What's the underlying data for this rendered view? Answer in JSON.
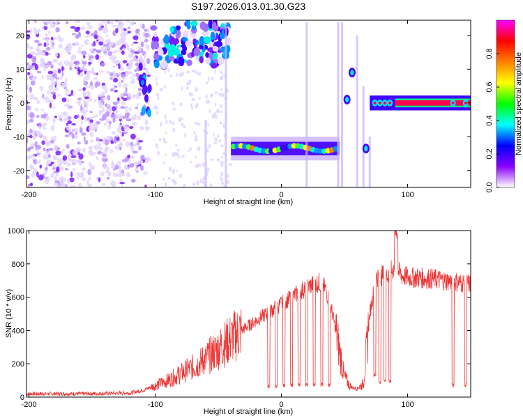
{
  "title": "S197.2026.013.01.30.G23",
  "chart_data": [
    {
      "type": "heatmap",
      "xlabel": "Height of straight line (km)",
      "ylabel": "Frequency (Hz)",
      "xlim": [
        -202,
        150
      ],
      "ylim": [
        -25,
        24.5
      ],
      "xticks": [
        -200,
        -100,
        0,
        100
      ],
      "yticks": [
        -20,
        -10,
        0,
        10,
        20
      ],
      "colorbar": {
        "label": "Normalized spectral amplitude",
        "range": [
          0,
          1
        ],
        "ticks": [
          0.0,
          0.2,
          0.4,
          0.6,
          0.8
        ],
        "tick_labels": [
          "0.0",
          "0.2",
          "0.4",
          "0.6",
          "0.8"
        ],
        "colors": [
          "#ffffff",
          "#8b00ff",
          "#0000ff",
          "#00ffff",
          "#00ff00",
          "#ffff00",
          "#ff8000",
          "#ff0000",
          "#ff00ff"
        ]
      },
      "features": [
        {
          "name": "noise-field",
          "x_range": [
            -202,
            -105
          ],
          "freq_range": [
            -25,
            24.5
          ],
          "amplitude": 0.15
        },
        {
          "name": "upper-band",
          "x_range": [
            -103,
            -42
          ],
          "freq_range": [
            11,
            24
          ],
          "amplitude": 0.3
        },
        {
          "name": "lower-band",
          "x_range": [
            -40,
            46
          ],
          "freq_center": -13.5,
          "amplitude": 0.35
        },
        {
          "name": "carrier-line",
          "x_range": [
            70,
            150
          ],
          "freq_center": 0,
          "amplitude": 0.95
        }
      ]
    },
    {
      "type": "line",
      "xlabel": "Height of straight line (km)",
      "ylabel": "SNR (10 * v/v)",
      "xlim": [
        -202,
        150
      ],
      "ylim": [
        0,
        1000
      ],
      "xticks": [
        -200,
        -100,
        0,
        100
      ],
      "yticks": [
        0,
        200,
        400,
        600,
        800,
        1000
      ],
      "series": [
        {
          "name": "SNR",
          "color": "#ee3333",
          "x": [
            -202,
            -180,
            -160,
            -140,
            -120,
            -110,
            -100,
            -90,
            -80,
            -70,
            -60,
            -50,
            -40,
            -30,
            -20,
            -10,
            0,
            10,
            20,
            30,
            35,
            40,
            45,
            50,
            55,
            60,
            65,
            70,
            75,
            80,
            85,
            90,
            95,
            100,
            110,
            120,
            130,
            140,
            150
          ],
          "y": [
            20,
            20,
            20,
            22,
            25,
            40,
            70,
            100,
            140,
            180,
            230,
            290,
            350,
            410,
            460,
            510,
            560,
            610,
            660,
            690,
            650,
            520,
            320,
            120,
            60,
            50,
            80,
            500,
            720,
            730,
            740,
            780,
            730,
            720,
            715,
            710,
            700,
            690,
            680
          ]
        }
      ],
      "dropouts": [
        {
          "x": -10,
          "y": 50
        },
        {
          "x": -4,
          "y": 50
        },
        {
          "x": 2,
          "y": 60
        },
        {
          "x": 8,
          "y": 60
        },
        {
          "x": 14,
          "y": 60
        },
        {
          "x": 20,
          "y": 60
        },
        {
          "x": 26,
          "y": 60
        },
        {
          "x": 32,
          "y": 60
        },
        {
          "x": 38,
          "y": 60
        },
        {
          "x": 74,
          "y": 120
        },
        {
          "x": 78,
          "y": 80
        },
        {
          "x": 82,
          "y": 90
        },
        {
          "x": 86,
          "y": 80
        },
        {
          "x": 136,
          "y": 60
        },
        {
          "x": 146,
          "y": 60
        }
      ]
    }
  ]
}
